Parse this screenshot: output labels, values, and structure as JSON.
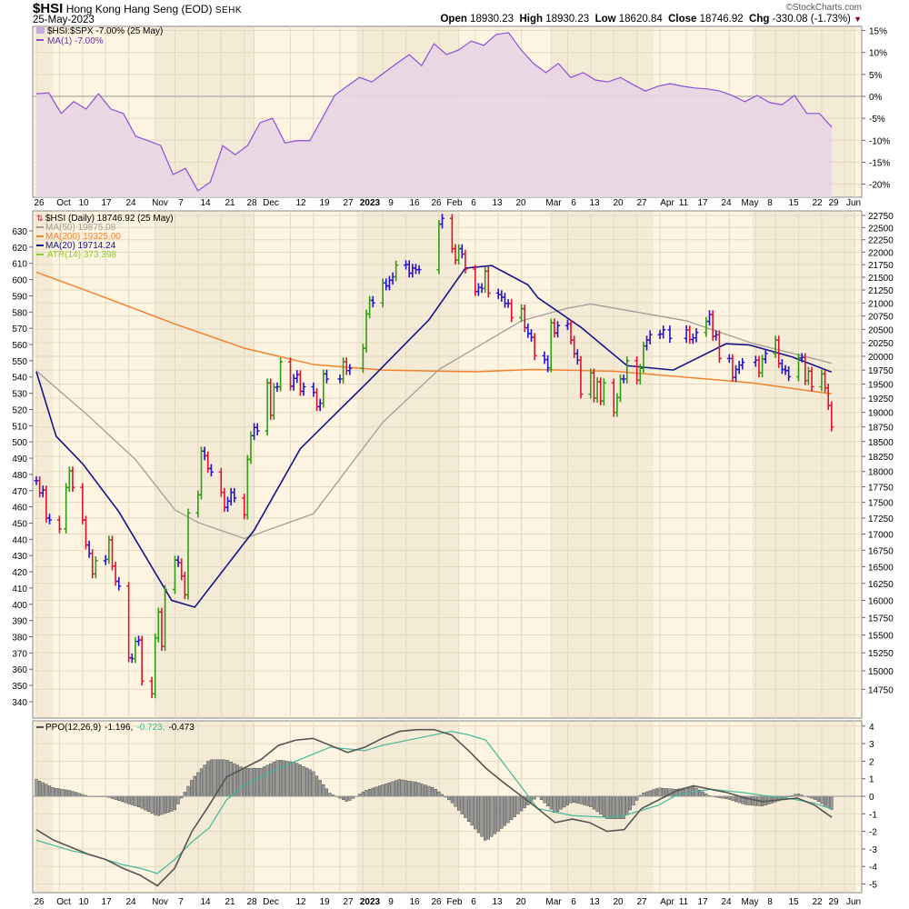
{
  "header": {
    "symbol": "$HSI",
    "name": "Hong Kong Hang Seng (EOD)",
    "exchange": "SEHK",
    "date": "25-May-2023",
    "copyright": "©StockCharts.com",
    "open_label": "Open",
    "open": "18930.23",
    "high_label": "High",
    "high": "18930.23",
    "low_label": "Low",
    "low": "18620.84",
    "close_label": "Close",
    "close": "18746.92",
    "chg_label": "Chg",
    "chg": "-330.08 (-1.73%)",
    "chg_icon": "down-triangle-icon"
  },
  "colors": {
    "up": "#2f9a14",
    "down": "#e2102c",
    "neutral": "#2410d0",
    "ma20": "#14148a",
    "ma50": "#a39c96",
    "ma200": "#f2822e",
    "ratio_line": "#8e4fd6",
    "ratio_fill": "#e9d5e6",
    "ppo": "#555555",
    "signal": "#3fb89a",
    "hist": "#8c8c8c",
    "atr": "#8fcf2a",
    "bg": "#fdf5e1",
    "bg_alt": "#f4ebd6",
    "grid": "#e3d9c2"
  },
  "legends": {
    "ratio": {
      "main": "$HSI:$SPX -7.00% (25 May)",
      "ma": "MA(1) -7.00%"
    },
    "price": {
      "main": "$HSI (Daily) 18746.92 (25 May)",
      "ma50": "MA(50) 19875.08",
      "ma200": "MA(200) 19325.00",
      "ma20": "MA(20) 19714.24",
      "atr": "ATR(14) 373.398"
    },
    "ppo": {
      "name": "PPO(12,26,9)",
      "ppo": "-1.196,",
      "signal": "-0.723,",
      "hist": "-0.473"
    }
  },
  "chart_data": [
    {
      "type": "area",
      "title": "$HSI:$SPX",
      "ylabel": "%",
      "ylim": [
        -22,
        16
      ],
      "yticks": [
        "15%",
        "10%",
        "5%",
        "0%",
        "-5%",
        "-10%",
        "-15%",
        "-20%"
      ],
      "ytick_values": [
        15,
        10,
        5,
        0,
        -5,
        -10,
        -15,
        -20
      ],
      "x_range": [
        "2022-09-26",
        "2023-05-25"
      ],
      "values": [
        0.6,
        0.8,
        -3.9,
        -1.2,
        -2.9,
        0.6,
        -2.9,
        -3.9,
        -9.1,
        -10.1,
        -11.2,
        -17.8,
        -16.4,
        -21.5,
        -19.5,
        -11.2,
        -13.3,
        -11.2,
        -6,
        -5,
        -10.6,
        -10.1,
        -10.1,
        -5,
        0.2,
        2.3,
        4.3,
        3.3,
        5.4,
        7.5,
        9.5,
        7,
        12,
        9.5,
        10.6,
        12.6,
        11.6,
        14.1,
        14.5,
        10.6,
        7.5,
        5.4,
        7.5,
        4.3,
        5.4,
        3.7,
        3.3,
        4.3,
        2.7,
        1.2,
        2.3,
        2.9,
        2.3,
        1.9,
        1.7,
        1.2,
        0.2,
        -1.2,
        0.2,
        -1.4,
        -1.9,
        0.2,
        -3.9,
        -3.9,
        -7
      ]
    },
    {
      "type": "ohlc",
      "title": "$HSI (Daily)",
      "scale": "log",
      "ylim": [
        14750,
        22750
      ],
      "yticks_right": [
        22750,
        22500,
        22250,
        22000,
        21750,
        21500,
        21250,
        21000,
        20750,
        20500,
        20250,
        20000,
        19750,
        19500,
        19250,
        19000,
        18750,
        18500,
        18250,
        18000,
        17750,
        17500,
        17250,
        17000,
        16750,
        16500,
        16250,
        16000,
        15750,
        15500,
        15250,
        15000,
        14750
      ],
      "yticks_left": [
        630,
        620,
        610,
        600,
        590,
        580,
        570,
        560,
        550,
        540,
        530,
        520,
        510,
        500,
        490,
        480,
        470,
        460,
        450,
        440,
        430,
        420,
        410,
        400,
        390,
        380,
        370,
        360,
        350,
        340
      ],
      "start": "2022-09-26",
      "weekly_closes": [
        [
          17850,
          17650,
          17700,
          17250,
          17220
        ],
        [
          17080,
          null,
          17740,
          18010,
          17740
        ],
        [
          17220,
          16830,
          16700,
          16390,
          16590
        ],
        [
          16610,
          16910,
          16510,
          16280,
          16210
        ],
        [
          15180,
          15170,
          15410,
          15430,
          14860
        ],
        [
          14690,
          15460,
          15830,
          15340,
          16160
        ],
        [
          16600,
          16560,
          16360,
          16080,
          17330
        ],
        [
          17620,
          18340,
          18260,
          18050,
          17990
        ],
        [
          17660,
          17420,
          17520,
          17660,
          17570
        ],
        [
          17300,
          18200,
          18600,
          18740,
          18680
        ],
        [
          19520,
          18950,
          19440,
          19450,
          19900
        ],
        [
          19460,
          19600,
          19670,
          19370,
          19450
        ],
        [
          19350,
          19100,
          19160,
          19680,
          19590
        ],
        [
          null,
          19590,
          19900,
          19740,
          19780
        ],
        [
          null,
          20150,
          20790,
          21050,
          21000
        ],
        [
          21390,
          21330,
          21440,
          21510,
          21740
        ],
        [
          21750,
          21580,
          21680,
          21650,
          21650
        ],
        [
          null,
          null,
          null,
          22570,
          22690
        ],
        [
          22070,
          21840,
          22070,
          21960,
          21660
        ],
        [
          21220,
          21300,
          21280,
          21620,
          21190
        ],
        [
          21160,
          21110,
          20990,
          20990,
          20720
        ],
        [
          20890,
          20530,
          20420,
          20350,
          20010
        ],
        [
          19940,
          19790,
          20620,
          20430,
          20570
        ],
        [
          20600,
          20300,
          20050,
          19930,
          19320
        ],
        [
          19700,
          19250,
          19540,
          19200,
          19520
        ],
        [
          19000,
          19260,
          19590,
          19590,
          19920
        ],
        [
          19570,
          19780,
          20190,
          20300,
          20400
        ],
        [
          20410,
          20490,
          null,
          20330,
          null
        ],
        [
          null,
          20490,
          20310,
          20340,
          20440
        ],
        [
          20650,
          20780,
          20370,
          20400,
          19960
        ],
        [
          19960,
          19620,
          19760,
          19840,
          19890
        ],
        [
          null,
          19930,
          19700,
          19950,
          20050
        ],
        [
          20300,
          19870,
          19760,
          19740,
          19630
        ],
        [
          19970,
          19980,
          19560,
          19730,
          19450
        ],
        [
          19680,
          19430,
          19120,
          18746.92
        ]
      ],
      "ma20_day_value": [
        [
          0,
          19720
        ],
        [
          6,
          18590
        ],
        [
          14,
          18130
        ],
        [
          25,
          17350
        ],
        [
          41,
          16000
        ],
        [
          48,
          15900
        ],
        [
          66,
          17060
        ],
        [
          80,
          18380
        ],
        [
          101,
          19570
        ],
        [
          119,
          20680
        ],
        [
          130,
          21680
        ],
        [
          138,
          21730
        ],
        [
          149,
          21350
        ],
        [
          152,
          21100
        ],
        [
          165,
          20540
        ],
        [
          179,
          19830
        ],
        [
          193,
          19750
        ],
        [
          209,
          20230
        ],
        [
          216,
          20210
        ],
        [
          229,
          19990
        ],
        [
          241,
          19714
        ]
      ],
      "ma50_day_value": [
        [
          0,
          19735
        ],
        [
          15,
          18980
        ],
        [
          30,
          18200
        ],
        [
          42,
          17380
        ],
        [
          49,
          17180
        ],
        [
          63,
          16930
        ],
        [
          84,
          17320
        ],
        [
          105,
          18830
        ],
        [
          122,
          19760
        ],
        [
          147,
          20660
        ],
        [
          161,
          20900
        ],
        [
          168,
          20980
        ],
        [
          197,
          20660
        ],
        [
          217,
          20240
        ],
        [
          241,
          19875
        ]
      ],
      "ma200_day_value": [
        [
          0,
          21600
        ],
        [
          21,
          21100
        ],
        [
          42,
          20600
        ],
        [
          63,
          20150
        ],
        [
          84,
          19850
        ],
        [
          105,
          19750
        ],
        [
          133,
          19720
        ],
        [
          150,
          19760
        ],
        [
          175,
          19730
        ],
        [
          197,
          19620
        ],
        [
          217,
          19520
        ],
        [
          241,
          19325
        ]
      ]
    },
    {
      "type": "line",
      "title": "PPO(12,26,9)",
      "ylim": [
        -5.3,
        4.2
      ],
      "yticks": [
        "4",
        "3",
        "2",
        "1",
        "0",
        "-1",
        "-2",
        "-3",
        "-4",
        "-5"
      ],
      "ytick_values": [
        4,
        3,
        2,
        1,
        0,
        -1,
        -2,
        -3,
        -4,
        -5
      ],
      "x_range": [
        "2022-09-26",
        "2023-05-25"
      ],
      "ppo": [
        -1.9,
        -2.5,
        -2.9,
        -3.3,
        -3.6,
        -4.1,
        -4.5,
        -5.1,
        -4.1,
        -2,
        -0.5,
        1.1,
        1.6,
        2.1,
        2.9,
        3.2,
        3.3,
        2.9,
        2.5,
        2.8,
        3.3,
        3.7,
        3.8,
        3.8,
        3.5,
        2.6,
        1.6,
        0.8,
        0.05,
        -0.7,
        -1.5,
        -1.3,
        -1.5,
        -2.0,
        -1.9,
        -0.7,
        -0.2,
        0.3,
        0.6,
        0.4,
        0.2,
        -0.1,
        -0.3,
        -0.2,
        -0.1,
        -0.5,
        -1.196
      ],
      "signal": [
        -2.5,
        -2.8,
        -3.1,
        -3.3,
        -3.6,
        -3.9,
        -4.1,
        -4.4,
        -3.6,
        -2.6,
        -1.8,
        -0.2,
        0.6,
        1.1,
        1.6,
        2.0,
        2.4,
        2.8,
        2.7,
        2.6,
        2.9,
        3.1,
        3.3,
        3.5,
        3.7,
        3.5,
        3.2,
        1.9,
        0.6,
        -0.7,
        -0.9,
        -1.1,
        -1.15,
        -1.2,
        -1.1,
        -0.8,
        -0.5,
        0.05,
        0.25,
        0.4,
        0.3,
        0.2,
        0.05,
        -0.05,
        -0.2,
        -0.4,
        -0.723
      ]
    }
  ],
  "x_axis": {
    "ticks": [
      [
        "26",
        "2022-09-26"
      ],
      [
        "Oct",
        "2022-10-03"
      ],
      [
        "10",
        "2022-10-10"
      ],
      [
        "17",
        "2022-10-17"
      ],
      [
        "24",
        "2022-10-24"
      ],
      [
        "Nov",
        "2022-11-01"
      ],
      [
        "7",
        "2022-11-07"
      ],
      [
        "14",
        "2022-11-14"
      ],
      [
        "21",
        "2022-11-21"
      ],
      [
        "28",
        "2022-11-28"
      ],
      [
        "Dec",
        "2022-12-01"
      ],
      [
        "12",
        "2022-12-12"
      ],
      [
        "19",
        "2022-12-19"
      ],
      [
        "27",
        "2022-12-27"
      ],
      [
        "2023",
        "2023-01-03"
      ],
      [
        "9",
        "2023-01-09"
      ],
      [
        "16",
        "2023-01-16"
      ],
      [
        "26",
        "2023-01-26"
      ],
      [
        "Feb",
        "2023-02-01"
      ],
      [
        "6",
        "2023-02-06"
      ],
      [
        "13",
        "2023-02-13"
      ],
      [
        "20",
        "2023-02-20"
      ],
      [
        "Mar",
        "2023-03-01"
      ],
      [
        "6",
        "2023-03-06"
      ],
      [
        "13",
        "2023-03-13"
      ],
      [
        "20",
        "2023-03-20"
      ],
      [
        "27",
        "2023-03-27"
      ],
      [
        "Apr",
        "2023-04-03"
      ],
      [
        "11",
        "2023-04-11"
      ],
      [
        "17",
        "2023-04-17"
      ],
      [
        "24",
        "2023-04-24"
      ],
      [
        "May",
        "2023-05-02"
      ],
      [
        "8",
        "2023-05-08"
      ],
      [
        "15",
        "2023-05-15"
      ],
      [
        "22",
        "2023-05-22"
      ],
      [
        "29",
        "2023-05-29"
      ],
      [
        "Jun",
        "2023-06-01"
      ]
    ]
  }
}
